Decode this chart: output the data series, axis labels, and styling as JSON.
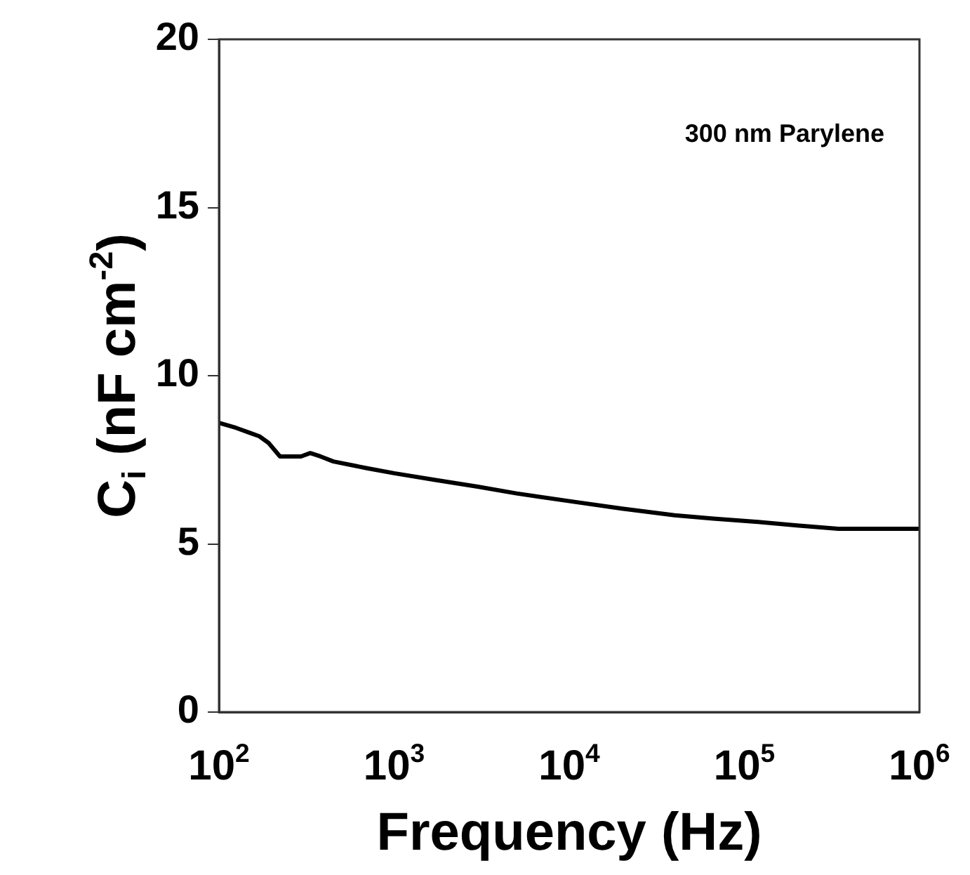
{
  "chart_data": {
    "type": "line",
    "xlabel": "Frequency (Hz)",
    "ylabel": "C$_{i}$ (nF cm$^{-2}$)",
    "annotations": [
      "300 nm Parylene"
    ],
    "log": "x",
    "xlim": [
      100,
      1000000
    ],
    "ylim": [
      0,
      20
    ],
    "xticks": [
      {
        "value": 100,
        "label": "10$^{2}$"
      },
      {
        "value": 1000,
        "label": "10$^{3}$"
      },
      {
        "value": 10000,
        "label": "10$^{4}$"
      },
      {
        "value": 100000,
        "label": "10$^{5}$"
      },
      {
        "value": 1000000,
        "label": "10$^{6}$"
      }
    ],
    "yticks": [
      0,
      5,
      10,
      15,
      20
    ],
    "legend": false,
    "marker": "none",
    "line_style": "solid",
    "series": [
      {
        "color": "#000000",
        "x": [
          100,
          125,
          150,
          170,
          192,
          223,
          260,
          294,
          332,
          380,
          450,
          700,
          1000,
          1722,
          3000,
          5000,
          10700,
          20000,
          40000,
          66500,
          120000,
          200000,
          344000,
          600000,
          1000000
        ],
        "values": [
          8.6,
          8.45,
          8.3,
          8.2,
          8.0,
          7.6,
          7.6,
          7.6,
          7.7,
          7.6,
          7.45,
          7.25,
          7.1,
          6.9,
          6.7,
          6.5,
          6.25,
          6.05,
          5.85,
          5.75,
          5.65,
          5.55,
          5.45,
          5.45,
          5.45
        ]
      }
    ]
  }
}
